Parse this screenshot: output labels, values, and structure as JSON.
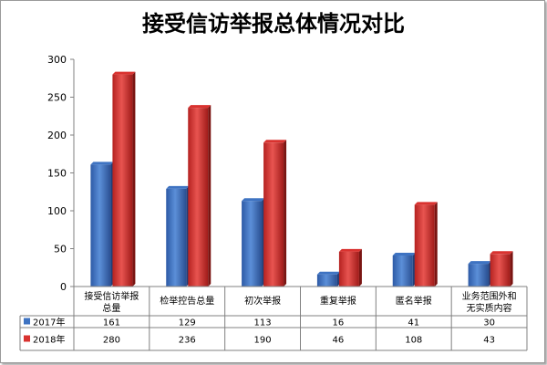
{
  "chart_data": {
    "type": "bar",
    "title": "接受信访举报总体情况对比",
    "categories": [
      [
        "接受信访举报",
        "总量"
      ],
      [
        "检举控告总量"
      ],
      [
        "初次举报"
      ],
      [
        "重复举报"
      ],
      [
        "匿名举报"
      ],
      [
        "业务范围外和",
        "无实质内容"
      ]
    ],
    "series": [
      {
        "name": "2017年",
        "values": [
          161,
          129,
          113,
          16,
          41,
          30
        ],
        "color": "#3e73c2",
        "color_dark": "#1f3f7a"
      },
      {
        "name": "2018年",
        "values": [
          280,
          236,
          190,
          46,
          108,
          43
        ],
        "color": "#d9322f",
        "color_dark": "#7a1512"
      }
    ],
    "yticks": [
      0,
      50,
      100,
      150,
      200,
      250,
      300
    ],
    "ylim": [
      0,
      300
    ],
    "grid": false,
    "legend": "data-table"
  }
}
